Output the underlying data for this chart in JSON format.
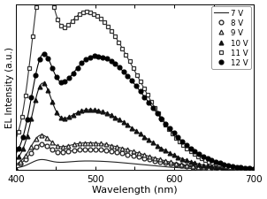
{
  "xlabel": "Wavelength (nm)",
  "ylabel": "EL Intensity (a.u.)",
  "xlim": [
    400,
    700
  ],
  "ylim": [
    0,
    1.05
  ],
  "background_color": "#ffffff",
  "series": [
    {
      "label": "7 V",
      "marker": "none",
      "fill": false,
      "peak_wl": 490,
      "peak_int": 0.055,
      "shoulder_wl": 430,
      "shoulder_int": 0.038,
      "sigma_main": 60,
      "sigma_shoulder": 12
    },
    {
      "label": "8 V",
      "marker": "o",
      "fill": false,
      "peak_wl": 490,
      "peak_int": 0.13,
      "shoulder_wl": 430,
      "shoulder_int": 0.1,
      "sigma_main": 60,
      "sigma_shoulder": 12
    },
    {
      "label": "9 V",
      "marker": "^",
      "fill": false,
      "peak_wl": 490,
      "peak_int": 0.17,
      "shoulder_wl": 430,
      "shoulder_int": 0.14,
      "sigma_main": 60,
      "sigma_shoulder": 12
    },
    {
      "label": "10 V",
      "marker": "^",
      "fill": true,
      "peak_wl": 492,
      "peak_int": 0.38,
      "shoulder_wl": 432,
      "shoulder_int": 0.38,
      "sigma_main": 58,
      "sigma_shoulder": 12
    },
    {
      "label": "11 V",
      "marker": "s",
      "fill": false,
      "peak_wl": 488,
      "peak_int": 1.0,
      "shoulder_wl": 432,
      "shoulder_int": 0.72,
      "sigma_main": 58,
      "sigma_shoulder": 13
    },
    {
      "label": "12 V",
      "marker": "o",
      "fill": true,
      "peak_wl": 500,
      "peak_int": 0.72,
      "shoulder_wl": 432,
      "shoulder_int": 0.46,
      "sigma_main": 60,
      "sigma_shoulder": 13
    }
  ],
  "marker_sizes": [
    4,
    3.5,
    3.5,
    3.5,
    3.5,
    3.5
  ],
  "marker_steps": [
    1,
    9,
    9,
    7,
    6,
    7
  ],
  "colors": [
    "#222222",
    "#222222",
    "#222222",
    "#111111",
    "#333333",
    "#000000"
  ],
  "linewidths": [
    0.8,
    0.8,
    0.8,
    0.8,
    0.8,
    0.8
  ]
}
